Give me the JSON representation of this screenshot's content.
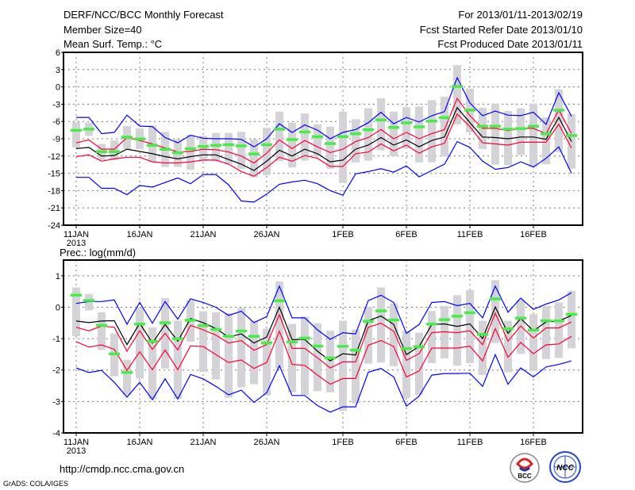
{
  "header": {
    "title": "DERF/NCC/BCC Monthly Forecast",
    "member_size": "Member Size=40",
    "period": "For 2013/01/11-2013/02/19",
    "refer_date": "Fcst Started Refer Date 2013/01/10",
    "produced_date": "Fcst Produced Date 2013/01/11"
  },
  "footer": {
    "url": "http://cmdp.ncc.cma.gov.cn",
    "grads": "GrADS: COLA/IGES",
    "logo_bcc": "BCC",
    "logo_ncc": "NCC"
  },
  "colors": {
    "max_min": "#0000ff",
    "quartile": "#ff0033",
    "mean": "#000000",
    "marker": "#44ee44",
    "box": "#d3d3d8",
    "grid": "#777777"
  },
  "chart_data": [
    {
      "type": "line",
      "title": "Mean Surf. Temp.: °C",
      "ylabel": "Mean Surf. Temp.: °C",
      "xlabel": "",
      "x_start": "2013/01/11",
      "x_days": 40,
      "x_ticks": [
        {
          "day": 0,
          "label": "11JAN",
          "sub": "2013"
        },
        {
          "day": 5,
          "label": "16JAN"
        },
        {
          "day": 10,
          "label": "21JAN"
        },
        {
          "day": 15,
          "label": "26JAN"
        },
        {
          "day": 21,
          "label": "1FEB"
        },
        {
          "day": 26,
          "label": "6FEB"
        },
        {
          "day": 31,
          "label": "11FEB"
        },
        {
          "day": 36,
          "label": "16FEB"
        }
      ],
      "ylim": [
        -24,
        6
      ],
      "y_ticks": [
        6,
        3,
        0,
        -3,
        -6,
        -9,
        -12,
        -15,
        -18,
        -21,
        -24
      ],
      "grid": true,
      "series": [
        {
          "name": "max",
          "color": "#0000ff",
          "values": [
            -5.3,
            -5.3,
            -8.1,
            -7.9,
            -4.9,
            -6.8,
            -6.9,
            -8.8,
            -9.7,
            -8.4,
            -8.9,
            -9,
            -9,
            -9.1,
            -10.4,
            -9,
            -6.4,
            -7.9,
            -6.6,
            -7.5,
            -9,
            -7.9,
            -7.4,
            -6.2,
            -4.4,
            -6.4,
            -5.3,
            -6.1,
            -5,
            -4.3,
            1.6,
            -2.8,
            -5,
            -4.2,
            -4.9,
            -5,
            -4.4,
            -6.5,
            -1,
            -5.1
          ]
        },
        {
          "name": "upper",
          "color": "#ff0033",
          "values": [
            -9.7,
            -9.2,
            -10.8,
            -10.8,
            -8.8,
            -9.3,
            -9.9,
            -10.6,
            -11.3,
            -11.2,
            -10.8,
            -10.9,
            -11.3,
            -12,
            -13.2,
            -11.5,
            -9.2,
            -10.7,
            -9.3,
            -10.4,
            -11.4,
            -10.8,
            -9.5,
            -8.8,
            -7.4,
            -9,
            -7.9,
            -9,
            -8.1,
            -7.4,
            -2,
            -5,
            -7.2,
            -7.2,
            -7.6,
            -7.2,
            -7.2,
            -8.1,
            -4,
            -8.1
          ]
        },
        {
          "name": "mean",
          "color": "#000000",
          "values": [
            -10.7,
            -10.5,
            -12,
            -11.9,
            -10.8,
            -11.2,
            -11.6,
            -12.1,
            -12.5,
            -12.1,
            -11.8,
            -11.8,
            -12.6,
            -13.4,
            -14.5,
            -12.9,
            -11,
            -12,
            -10.8,
            -11.6,
            -13,
            -12.7,
            -10.8,
            -10.1,
            -8.8,
            -10.1,
            -9.2,
            -10.4,
            -9.3,
            -8.7,
            -3.6,
            -6.2,
            -8.7,
            -8.8,
            -9,
            -8.7,
            -8.7,
            -9.1,
            -5.3,
            -9.5
          ]
        },
        {
          "name": "lower",
          "color": "#ff0033",
          "values": [
            -12.1,
            -11.8,
            -12.9,
            -12.5,
            -12.2,
            -12.2,
            -13,
            -13.2,
            -13.2,
            -13,
            -12.7,
            -12.7,
            -13.4,
            -14.7,
            -15.5,
            -14,
            -12.2,
            -12.9,
            -11.9,
            -12.4,
            -13.8,
            -13.8,
            -11.6,
            -11.3,
            -9.9,
            -11.1,
            -10.1,
            -11.5,
            -10.4,
            -9.8,
            -4.7,
            -6.9,
            -9.7,
            -9.9,
            -10.1,
            -9.6,
            -9.6,
            -9.6,
            -6.5,
            -10.6
          ]
        },
        {
          "name": "min",
          "color": "#0000ff",
          "values": [
            -15.7,
            -15.7,
            -17.6,
            -17.6,
            -18.7,
            -17.1,
            -17.4,
            -16.6,
            -15.8,
            -16.8,
            -15.2,
            -15.2,
            -17,
            -19.8,
            -20,
            -18.6,
            -16.9,
            -16.5,
            -16.2,
            -16.8,
            -18,
            -18.8,
            -15.1,
            -14.7,
            -14.2,
            -14.8,
            -13.7,
            -15.6,
            -14.5,
            -13.4,
            -9.5,
            -10.5,
            -12.9,
            -14.3,
            -14,
            -13,
            -13.9,
            -12.4,
            -10.4,
            -15
          ]
        }
      ],
      "markers": [
        -7.5,
        -7.3,
        -11.2,
        -11.2,
        -8.7,
        -9,
        -10.1,
        -10.8,
        -11.4,
        -10.7,
        -10.3,
        -10.1,
        -10,
        -10.2,
        -11.6,
        -10,
        -7.3,
        -9.1,
        -7.8,
        -8.6,
        -9.8,
        -8.6,
        -8.1,
        -7.4,
        -5.7,
        -7,
        -6.2,
        -6.9,
        -5.9,
        -5.3,
        0.1,
        -4,
        -6.8,
        -6.8,
        -7.3,
        -7.2,
        -6.8,
        -8.1,
        -4,
        -8.4
      ],
      "boxes_high": [
        -6.1,
        -6.2,
        -9.9,
        -9.3,
        -6.8,
        -7.2,
        -6.7,
        -7.8,
        -9.1,
        -8.3,
        -8.5,
        -8,
        -8,
        -7.8,
        -9.1,
        -7.1,
        -4.3,
        -6.2,
        -4.6,
        -6.5,
        -6.9,
        -4.3,
        -5.6,
        -3.7,
        -2,
        -4.3,
        -3.5,
        -3.4,
        -2.3,
        -1.7,
        3.8,
        -0.3,
        -3.6,
        -2.9,
        -4.2,
        -3.7,
        -2.9,
        -5.3,
        -0.4,
        -4.7
      ],
      "boxes_low": [
        -10.5,
        -8.5,
        -12.7,
        -12.7,
        -10.8,
        -10.8,
        -13,
        -13.9,
        -13.9,
        -14.4,
        -12.9,
        -12.9,
        -13.4,
        -14.2,
        -15.7,
        -15.3,
        -12.9,
        -14,
        -12.8,
        -12,
        -14.2,
        -16.7,
        -13.1,
        -12.8,
        -11,
        -12,
        -10.7,
        -13.1,
        -13.1,
        -12.1,
        -6.5,
        -7.9,
        -10.8,
        -13.5,
        -13.6,
        -11.8,
        -13.9,
        -13.4,
        -11.3,
        -14.2
      ]
    },
    {
      "type": "line",
      "title": "Prec.: log(mm/d)",
      "ylabel": "Prec.: log(mm/d)",
      "xlabel": "",
      "x_start": "2013/01/11",
      "x_days": 40,
      "x_ticks": [
        {
          "day": 0,
          "label": "11JAN",
          "sub": "2013"
        },
        {
          "day": 5,
          "label": "16JAN"
        },
        {
          "day": 10,
          "label": "21JAN"
        },
        {
          "day": 15,
          "label": "26JAN"
        },
        {
          "day": 21,
          "label": "1FEB"
        },
        {
          "day": 26,
          "label": "6FEB"
        },
        {
          "day": 31,
          "label": "11FEB"
        },
        {
          "day": 36,
          "label": "16FEB"
        }
      ],
      "ylim": [
        -4,
        1.5
      ],
      "y_ticks": [
        1,
        0,
        -1,
        -2,
        -3,
        -4
      ],
      "grid": true,
      "series": [
        {
          "name": "max",
          "color": "#0000ff",
          "values": [
            0.12,
            0.18,
            0.18,
            0.23,
            -0.54,
            0.15,
            -0.51,
            0.18,
            -0.38,
            0.27,
            0.15,
            0,
            -0.26,
            -0.13,
            -0.49,
            -0.3,
            0.67,
            -0.34,
            -0.34,
            -0.72,
            -1.02,
            -0.81,
            -0.85,
            0.21,
            0.38,
            0.15,
            -0.83,
            -0.55,
            0.15,
            0.18,
            0.05,
            0.12,
            -0.34,
            0.67,
            -0.16,
            0.29,
            -0.07,
            0.1,
            0.23,
            0.46
          ]
        },
        {
          "name": "upper",
          "color": "#ff0033",
          "values": [
            -0.64,
            -0.75,
            -0.6,
            -0.64,
            -1.4,
            -0.75,
            -1.34,
            -0.83,
            -1.36,
            -0.58,
            -0.72,
            -0.89,
            -1.14,
            -1.06,
            -1.37,
            -1.19,
            -0.24,
            -1.31,
            -1.31,
            -1.61,
            -1.93,
            -1.74,
            -1.74,
            -0.64,
            -0.51,
            -0.76,
            -1.69,
            -1.48,
            -0.81,
            -0.78,
            -0.81,
            -0.75,
            -1.19,
            -0.19,
            -1.08,
            -0.6,
            -0.98,
            -0.66,
            -0.66,
            -0.47
          ]
        },
        {
          "name": "mean",
          "color": "#000000",
          "values": [
            -0.44,
            -0.49,
            -0.44,
            -0.43,
            -1.19,
            -0.51,
            -1.14,
            -0.55,
            -1.08,
            -0.36,
            -0.49,
            -0.68,
            -0.95,
            -0.85,
            -1.14,
            -0.95,
            0,
            -1.03,
            -1.03,
            -1.4,
            -1.71,
            -1.48,
            -1.52,
            -0.43,
            -0.28,
            -0.55,
            -1.51,
            -1.25,
            -0.55,
            -0.53,
            -0.61,
            -0.53,
            -1,
            0.01,
            -0.83,
            -0.36,
            -0.75,
            -0.47,
            -0.44,
            -0.26
          ]
        },
        {
          "name": "lower",
          "color": "#ff0033",
          "values": [
            -1.1,
            -1.27,
            -1.2,
            -1.34,
            -2.01,
            -1.42,
            -1.99,
            -1.36,
            -1.99,
            -1.23,
            -1.25,
            -1.51,
            -1.76,
            -1.68,
            -1.95,
            -1.76,
            -0.76,
            -1.82,
            -1.85,
            -2.16,
            -2.45,
            -2.27,
            -2.27,
            -1.21,
            -1.06,
            -1.25,
            -2.22,
            -2.03,
            -1.3,
            -1.3,
            -1.3,
            -1.24,
            -1.71,
            -0.68,
            -1.59,
            -1.12,
            -1.48,
            -1.2,
            -1.17,
            -0.93
          ]
        },
        {
          "name": "min",
          "color": "#0000ff",
          "values": [
            -1.93,
            -2.08,
            -2.01,
            -2.39,
            -2.86,
            -2.39,
            -2.94,
            -2.28,
            -2.92,
            -2.14,
            -2.28,
            -2.52,
            -2.79,
            -2.64,
            -3.03,
            -2.72,
            -1.86,
            -2.81,
            -2.81,
            -3.13,
            -3.34,
            -3.17,
            -3.17,
            -2.07,
            -1.95,
            -2.22,
            -3.15,
            -2.83,
            -2.16,
            -2.11,
            -2.11,
            -2.1,
            -2.52,
            -1.51,
            -2.45,
            -1.93,
            -2.22,
            -1.9,
            -1.82,
            -1.71
          ]
        }
      ],
      "markers": [
        0.39,
        0.22,
        -0.57,
        -1.48,
        -2.07,
        -0.53,
        -1.08,
        -0.49,
        -1,
        -0.41,
        -0.58,
        -0.7,
        -0.92,
        -0.75,
        -0.92,
        -1.13,
        0.21,
        -1.1,
        -0.98,
        -1.23,
        -1.61,
        -1.24,
        -1.36,
        -0.44,
        -0.11,
        -0.4,
        -1.31,
        -1.25,
        -0.53,
        -0.39,
        -0.28,
        -0.17,
        -0.86,
        0.27,
        -0.68,
        -0.34,
        -0.72,
        -0.43,
        -0.43,
        -0.22
      ],
      "boxes_high": [
        0.63,
        0.42,
        -0.16,
        -0.83,
        -1.68,
        0,
        -0.64,
        0.29,
        -0.43,
        0.23,
        -0.13,
        -0.16,
        -0.19,
        -0.02,
        -0.43,
        -0.68,
        0.82,
        -0.53,
        -0.3,
        -0.51,
        -0.75,
        -0.43,
        -0.71,
        0.01,
        0.63,
        0.12,
        -0.76,
        -0.81,
        -0.12,
        0.04,
        0.38,
        0.54,
        -0.43,
        0.86,
        -0.43,
        0.23,
        -0.22,
        0.04,
        0.15,
        0.52
      ],
      "boxes_low": [
        -0.92,
        -0.1,
        -1.36,
        -2.2,
        -2.79,
        -2.27,
        -2.92,
        -1.95,
        -2.92,
        -1.1,
        -2.06,
        -2.3,
        -2.88,
        -2.55,
        -2.45,
        -2.81,
        -1.95,
        -2.71,
        -2.79,
        -2.67,
        -2.71,
        -3.3,
        -3.06,
        -1.8,
        -1.76,
        -1.88,
        -2.89,
        -2.79,
        -1.78,
        -1.63,
        -1.86,
        -1.78,
        -2.16,
        -1.14,
        -2.07,
        -1.48,
        -2.03,
        -1.65,
        -1.61,
        -1.31
      ]
    }
  ]
}
